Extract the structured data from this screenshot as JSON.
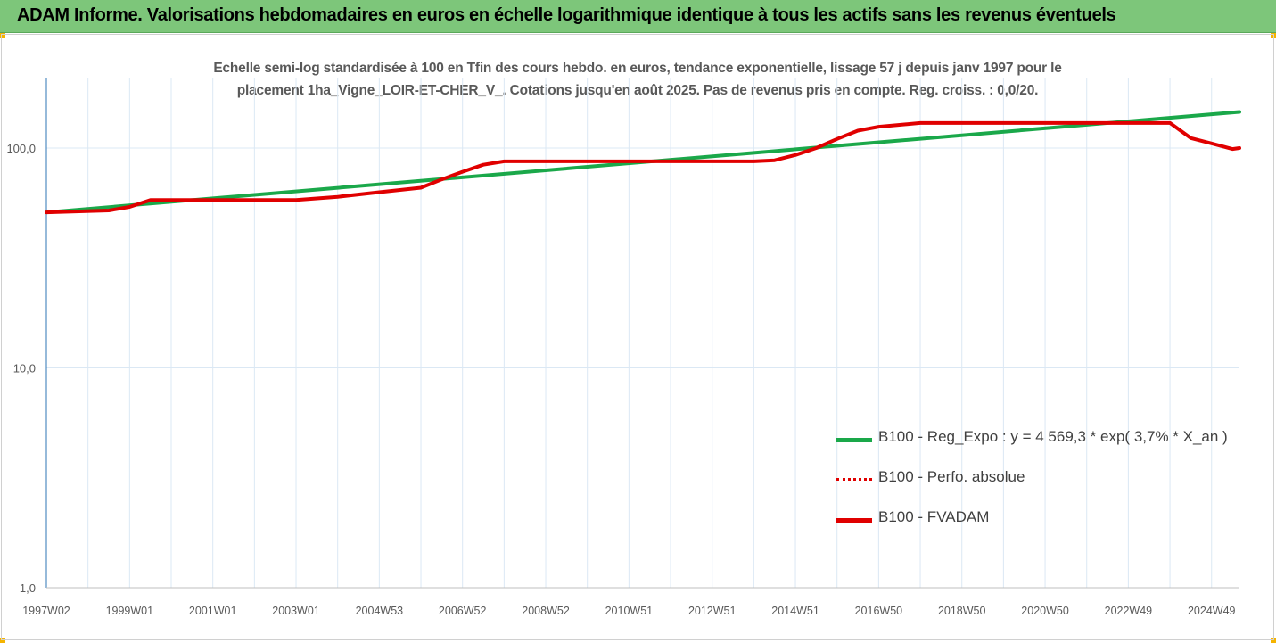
{
  "banner": {
    "title": "ADAM Informe. Valorisations hebdomadaires en euros en échelle logarithmique identique à tous les actifs sans les revenus éventuels"
  },
  "colors": {
    "banner_bg": "#7dc67a",
    "trend": "#1aa84a",
    "perf": "#e00000",
    "fvadam": "#e00000",
    "grid": "#dbe8f4",
    "axis_text": "#595959"
  },
  "chart_data": {
    "type": "line",
    "title_lines": [
      "Echelle semi-log standardisée à 100 en Tfin des cours hebdo. en euros, tendance exponentielle, lissage 57 j depuis janv 1997 pour le",
      "placement 1ha_Vigne_LOIR-ET-CHER_V_. Cotations jusqu'en août 2025. Pas de revenus pris en compte. Reg. croiss. : 0,0/20."
    ],
    "y_scale": "log",
    "ylim": [
      1,
      200
    ],
    "y_ticks": [
      {
        "value": 1,
        "label": "1,0"
      },
      {
        "value": 10,
        "label": "10,0"
      },
      {
        "value": 100,
        "label": "100,0"
      }
    ],
    "xlim": [
      1997.0,
      2025.67
    ],
    "x_ticks": [
      {
        "value": 1997.0,
        "label": "1997W02"
      },
      {
        "value": 1999.0,
        "label": "1999W01"
      },
      {
        "value": 2001.0,
        "label": "2001W01"
      },
      {
        "value": 2003.0,
        "label": "2003W01"
      },
      {
        "value": 2005.0,
        "label": "2004W53"
      },
      {
        "value": 2007.0,
        "label": "2006W52"
      },
      {
        "value": 2009.0,
        "label": "2008W52"
      },
      {
        "value": 2011.0,
        "label": "2010W51"
      },
      {
        "value": 2013.0,
        "label": "2012W51"
      },
      {
        "value": 2015.0,
        "label": "2014W51"
      },
      {
        "value": 2017.0,
        "label": "2016W50"
      },
      {
        "value": 2019.0,
        "label": "2018W50"
      },
      {
        "value": 2021.0,
        "label": "2020W50"
      },
      {
        "value": 2023.0,
        "label": "2022W49"
      },
      {
        "value": 2025.0,
        "label": "2024W49"
      }
    ],
    "grid": true,
    "legend_position": "right",
    "series": [
      {
        "name": "B100 - Reg_Expo : y = 4 569,3 * exp( 3,7% *  X_an )",
        "style": "solid",
        "color": "#1aa84a",
        "x": [
          1997.0,
          2025.67
        ],
        "y": [
          51,
          146
        ]
      },
      {
        "name": "B100 - Perfo. absolue",
        "style": "dotted",
        "color": "#e00000",
        "x": [],
        "y": []
      },
      {
        "name": "B100 - FVADAM",
        "style": "solid",
        "color": "#e00000",
        "x": [
          1997.0,
          1998.5,
          1999.0,
          1999.5,
          2000.0,
          2001.0,
          2002.0,
          2003.0,
          2004.0,
          2005.0,
          2006.0,
          2006.5,
          2007.0,
          2007.5,
          2008.0,
          2009.0,
          2010.0,
          2011.0,
          2012.0,
          2013.0,
          2014.0,
          2014.5,
          2015.0,
          2015.5,
          2016.0,
          2016.5,
          2017.0,
          2018.0,
          2019.0,
          2020.0,
          2021.0,
          2022.0,
          2023.0,
          2023.5,
          2024.0,
          2024.5,
          2025.0,
          2025.5,
          2025.67
        ],
        "y": [
          51,
          52,
          54,
          58,
          58,
          58,
          58,
          58,
          60,
          63,
          66,
          72,
          78,
          84,
          87,
          87,
          87,
          87,
          87,
          87,
          87,
          88,
          93,
          100,
          110,
          120,
          125,
          130,
          130,
          130,
          130,
          130,
          130,
          130,
          130,
          111,
          105,
          99,
          100
        ]
      }
    ]
  }
}
